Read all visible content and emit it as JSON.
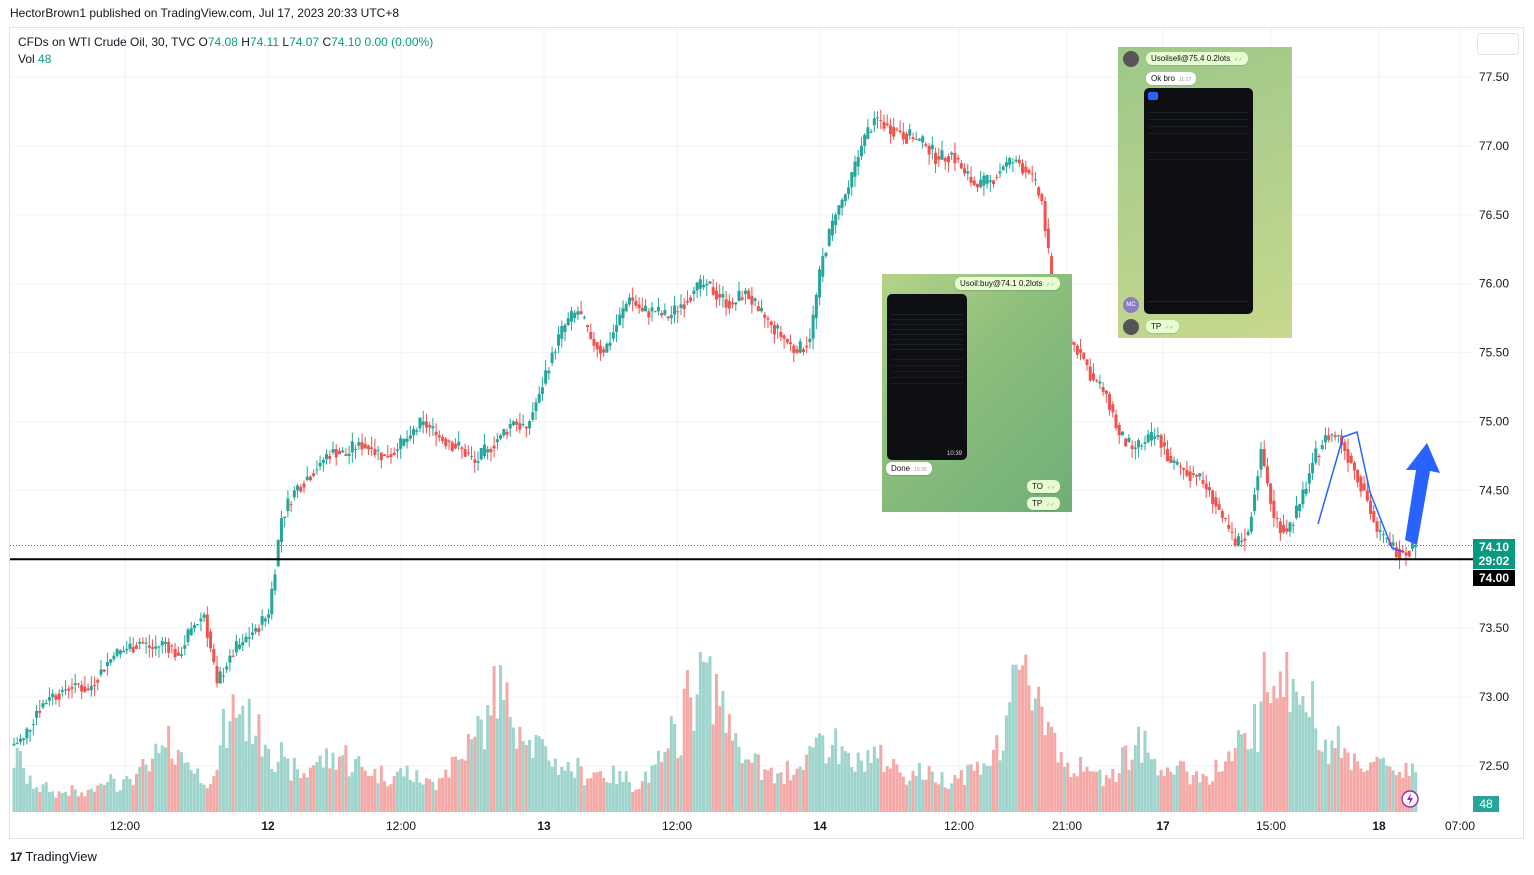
{
  "header": {
    "published": "HectorBrown1 published on TradingView.com, Jul 17, 2023 20:33 UTC+8"
  },
  "legend": {
    "symbol": "CFDs on WTI Crude Oil, 30, TVC",
    "o_label": "O",
    "o": "74.08",
    "h_label": "H",
    "h": "74.11",
    "l_label": "L",
    "l": "74.07",
    "c_label": "C",
    "c": "74.10",
    "change": "0.00 (0.00%)",
    "vol_label": "Vol",
    "vol": "48"
  },
  "colors": {
    "up": "#26a69a",
    "down": "#ef5350",
    "vol_up": "#9fd4cd",
    "vol_down": "#f4a9a6",
    "line": "#000000",
    "arrow": "#2962ff",
    "tag": "#089981"
  },
  "price_axis": {
    "ticks": [
      "77.50",
      "77.00",
      "76.50",
      "76.00",
      "75.50",
      "75.00",
      "74.50",
      "74.00",
      "73.50",
      "73.00",
      "72.50"
    ]
  },
  "time_axis": {
    "labels": [
      "12:00",
      "12",
      "12:00",
      "13",
      "12:00",
      "14",
      "12:00",
      "21:00",
      "17",
      "15:00",
      "18",
      "07:00"
    ],
    "bold": [
      false,
      true,
      false,
      true,
      false,
      true,
      false,
      false,
      true,
      false,
      true,
      false
    ]
  },
  "price_tags": {
    "last": "74.10",
    "countdown": "29:02",
    "level": "74.00",
    "volume": "48"
  },
  "footer": {
    "brand": "TradingView",
    "logo": "17"
  },
  "screenshots": {
    "first": {
      "order": "Usoil:buy@74.1  0.2lots",
      "reply": "Done",
      "msg1": "TO",
      "msg2": "TP",
      "clock": "10:39"
    },
    "second": {
      "order": "Usoilsell@75.4  0.2lots",
      "reply": "Ok bro",
      "msg": "TP",
      "avatar": "MC"
    }
  },
  "chart_data": {
    "type": "candlestick",
    "symbol": "CFDs on WTI Crude Oil, 30, TVC",
    "horizontal_line": 74.0,
    "ylim": [
      72.2,
      77.75
    ],
    "close_path": [
      72.7,
      72.9,
      73.0,
      73.05,
      73.1,
      73.05,
      73.2,
      73.3,
      73.35,
      73.4,
      73.35,
      73.4,
      73.3,
      73.5,
      73.6,
      73.1,
      73.3,
      73.4,
      73.5,
      73.6,
      74.3,
      74.5,
      74.6,
      74.7,
      74.8,
      74.75,
      74.85,
      74.8,
      74.75,
      74.8,
      74.9,
      75.0,
      74.9,
      74.85,
      74.8,
      74.7,
      74.8,
      74.9,
      75.0,
      74.95,
      75.2,
      75.5,
      75.7,
      75.8,
      75.6,
      75.5,
      75.7,
      75.9,
      75.8,
      75.8,
      75.75,
      75.85,
      75.95,
      76.0,
      75.9,
      75.85,
      75.95,
      75.8,
      75.7,
      75.6,
      75.5,
      75.6,
      76.2,
      76.5,
      76.7,
      77.0,
      77.2,
      77.15,
      77.1,
      77.05,
      77.0,
      76.9,
      76.95,
      76.8,
      76.7,
      76.75,
      76.85,
      76.9,
      76.8,
      76.6,
      75.8,
      75.6,
      75.5,
      75.3,
      75.2,
      74.9,
      74.8,
      74.85,
      74.9,
      74.7,
      74.65,
      74.6,
      74.5,
      74.3,
      74.1,
      74.2,
      74.8,
      74.3,
      74.2,
      74.4,
      74.7,
      74.9,
      74.9,
      74.7,
      74.5,
      74.2,
      74.1,
      74.05,
      74.1
    ],
    "volume_path": [
      55,
      30,
      25,
      20,
      22,
      18,
      25,
      40,
      30,
      38,
      45,
      60,
      70,
      55,
      40,
      35,
      85,
      110,
      95,
      80,
      60,
      45,
      40,
      52,
      55,
      60,
      50,
      45,
      40,
      38,
      42,
      35,
      30,
      45,
      55,
      70,
      90,
      130,
      110,
      95,
      70,
      60,
      50,
      45,
      40,
      42,
      38,
      35,
      30,
      40,
      55,
      80,
      120,
      150,
      130,
      100,
      70,
      50,
      40,
      35,
      45,
      60,
      80,
      70,
      55,
      50,
      60,
      55,
      48,
      40,
      42,
      38,
      35,
      40,
      45,
      55,
      65,
      120,
      140,
      130,
      90,
      60,
      45,
      40,
      38,
      45,
      60,
      70,
      55,
      48,
      42,
      40,
      38,
      45,
      55,
      70,
      90,
      140,
      160,
      130,
      110,
      90,
      70,
      60,
      55,
      50,
      48,
      45,
      48
    ],
    "xlabel": "",
    "ylabel": ""
  }
}
